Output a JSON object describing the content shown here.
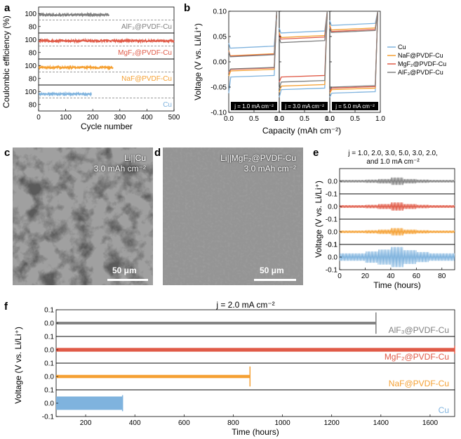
{
  "panels": {
    "a": {
      "letter": "a",
      "ylabel": "Coulombic efficiency (%)",
      "xlabel": "Cycle number",
      "xticks": [
        "0",
        "100",
        "200",
        "300",
        "400",
        "500"
      ],
      "yticks": [
        "80",
        "100"
      ]
    },
    "b": {
      "letter": "b",
      "ylabel": "Voltage (V vs. Li/Li⁺)",
      "xlabel": "Capacity (mAh cm⁻²)",
      "xticks": [
        "0.0",
        "0.5",
        "1.0"
      ],
      "yticks": [
        "-0.10",
        "-0.05",
        "0.00",
        "0.05",
        "0.10"
      ],
      "j_labels": [
        "j = 1.0 mA cm⁻²",
        "j = 3.0 mA cm⁻²",
        "j = 5.0 mA cm⁻²"
      ]
    },
    "c": {
      "letter": "c",
      "title_line1": "Li||Cu",
      "title_line2": "3.0 mAh cm⁻²",
      "scale": "50 μm"
    },
    "d": {
      "letter": "d",
      "title_line1": "Li||MgF₂@PVDF-Cu",
      "title_line2": "3.0 mAh cm⁻²",
      "scale": "50 μm"
    },
    "e": {
      "letter": "e",
      "title_line1": "j = 1.0, 2.0, 3.0, 5.0, 3.0, 2.0,",
      "title_line2": "and 1.0 mA cm⁻²",
      "ylabel": "Voltage (V vs. Li/Li⁺)",
      "xlabel": "Time (hours)",
      "xticks": [
        "0",
        "20",
        "40",
        "60",
        "80"
      ],
      "yticks": [
        "0.0",
        "0.1",
        "-0.1"
      ]
    },
    "f": {
      "letter": "f",
      "title": "j = 2.0 mA cm⁻²",
      "ylabel": "Voltage (V vs. Li/Li⁺)",
      "xlabel": "Time (hours)",
      "xticks": [
        "200",
        "400",
        "600",
        "800",
        "1000",
        "1200",
        "1400",
        "1600"
      ],
      "yticks": [
        "0.1",
        "0.0",
        "-0.1"
      ]
    }
  },
  "chart_data": [
    {
      "panel": "a",
      "type": "scatter",
      "xlabel": "Cycle number",
      "ylabel": "Coulombic efficiency (%)",
      "xlim": [
        0,
        500
      ],
      "ylim_per_subplot": [
        70,
        110
      ],
      "series": [
        {
          "name": "AlF₃@PVDF-Cu",
          "color": "#808080",
          "cycles": 260,
          "mean": 98
        },
        {
          "name": "MgF₂@PVDF-Cu",
          "color": "#e05a47",
          "cycles": 500,
          "mean": 98
        },
        {
          "name": "NaF@PVDF-Cu",
          "color": "#f5a032",
          "cycles": 275,
          "mean": 97
        },
        {
          "name": "Cu",
          "color": "#7fb3de",
          "cycles": 195,
          "mean": 96
        }
      ],
      "reference_line": 90
    },
    {
      "panel": "b",
      "type": "line",
      "xlabel": "Capacity (mAh cm⁻²)",
      "ylabel": "Voltage (V vs. Li/Li⁺)",
      "xlim": [
        0,
        1.0
      ],
      "ylim": [
        -0.1,
        0.1
      ],
      "legend": [
        "Cu",
        "NaF@PVDF-Cu",
        "MgF₂@PVDF-Cu",
        "AlF₃@PVDF-Cu"
      ],
      "subplots": [
        {
          "j": "1.0 mA cm⁻²",
          "series": [
            {
              "name": "Cu",
              "color": "#7fb3de",
              "charge": 0.027,
              "discharge": -0.03,
              "nucleation": -0.062
            },
            {
              "name": "NaF@PVDF-Cu",
              "color": "#f5a032",
              "charge": 0.012,
              "discharge": -0.018,
              "nucleation": -0.028
            },
            {
              "name": "MgF₂@PVDF-Cu",
              "color": "#e05a47",
              "charge": 0.011,
              "discharge": -0.015,
              "nucleation": -0.022
            },
            {
              "name": "AlF₃@PVDF-Cu",
              "color": "#808080",
              "charge": 0.01,
              "discharge": -0.014,
              "nucleation": -0.02
            }
          ]
        },
        {
          "j": "3.0 mA cm⁻²",
          "series": [
            {
              "name": "Cu",
              "color": "#7fb3de",
              "charge": 0.057,
              "discharge": -0.055,
              "nucleation": -0.07
            },
            {
              "name": "NaF@PVDF-Cu",
              "color": "#f5a032",
              "charge": 0.048,
              "discharge": -0.048,
              "nucleation": -0.06
            },
            {
              "name": "MgF₂@PVDF-Cu",
              "color": "#e05a47",
              "charge": 0.045,
              "discharge": -0.03,
              "nucleation": -0.04
            },
            {
              "name": "AlF₃@PVDF-Cu",
              "color": "#808080",
              "charge": 0.038,
              "discharge": -0.04,
              "nucleation": -0.052
            }
          ]
        },
        {
          "j": "5.0 mA cm⁻²",
          "series": [
            {
              "name": "Cu",
              "color": "#7fb3de",
              "charge": 0.072,
              "discharge": -0.062,
              "nucleation": -0.07
            },
            {
              "name": "NaF@PVDF-Cu",
              "color": "#f5a032",
              "charge": 0.063,
              "discharge": -0.055,
              "nucleation": -0.062
            },
            {
              "name": "MgF₂@PVDF-Cu",
              "color": "#e05a47",
              "charge": 0.06,
              "discharge": -0.052,
              "nucleation": -0.058
            },
            {
              "name": "AlF₃@PVDF-Cu",
              "color": "#808080",
              "charge": 0.058,
              "discharge": -0.05,
              "nucleation": -0.055
            }
          ]
        }
      ]
    },
    {
      "panel": "e",
      "type": "line",
      "xlabel": "Time (hours)",
      "ylabel": "Voltage (V vs. Li/Li⁺)",
      "xlim": [
        0,
        90
      ],
      "ylim_per_subplot": [
        -0.1,
        0.1
      ],
      "current_steps": [
        1.0,
        2.0,
        3.0,
        5.0,
        3.0,
        2.0,
        1.0
      ],
      "step_end_hours": [
        20,
        30,
        40,
        50,
        60,
        70,
        90
      ],
      "series": [
        {
          "name": "AlF₃@PVDF-Cu",
          "color": "#808080",
          "amplitudes": [
            0.01,
            0.013,
            0.018,
            0.03,
            0.018,
            0.013,
            0.01
          ]
        },
        {
          "name": "MgF₂@PVDF-Cu",
          "color": "#e05a47",
          "amplitudes": [
            0.011,
            0.014,
            0.02,
            0.032,
            0.02,
            0.014,
            0.011
          ]
        },
        {
          "name": "NaF@PVDF-Cu",
          "color": "#f5a032",
          "amplitudes": [
            0.01,
            0.013,
            0.018,
            0.03,
            0.018,
            0.013,
            0.01
          ]
        },
        {
          "name": "Cu",
          "color": "#7fb3de",
          "amplitudes": [
            0.03,
            0.045,
            0.06,
            0.08,
            0.055,
            0.04,
            0.03
          ]
        }
      ]
    },
    {
      "panel": "f",
      "type": "line",
      "xlabel": "Time (hours)",
      "ylabel": "Voltage (V vs. Li/Li⁺)",
      "xlim": [
        80,
        1700
      ],
      "ylim_per_subplot": [
        -0.1,
        0.1
      ],
      "series": [
        {
          "name": "AlF₃@PVDF-Cu",
          "color": "#808080",
          "end_hours": 1380,
          "amplitude": 0.01,
          "spike": 0.08
        },
        {
          "name": "MgF₂@PVDF-Cu",
          "color": "#e05a47",
          "end_hours": 1700,
          "amplitude": 0.014,
          "spike": 0.03
        },
        {
          "name": "NaF@PVDF-Cu",
          "color": "#f5a032",
          "end_hours": 868,
          "amplitude": 0.012,
          "spike": 0.075
        },
        {
          "name": "Cu",
          "color": "#7fb3de",
          "end_hours": 350,
          "amplitude": 0.05,
          "spike": 0.06
        }
      ]
    }
  ]
}
